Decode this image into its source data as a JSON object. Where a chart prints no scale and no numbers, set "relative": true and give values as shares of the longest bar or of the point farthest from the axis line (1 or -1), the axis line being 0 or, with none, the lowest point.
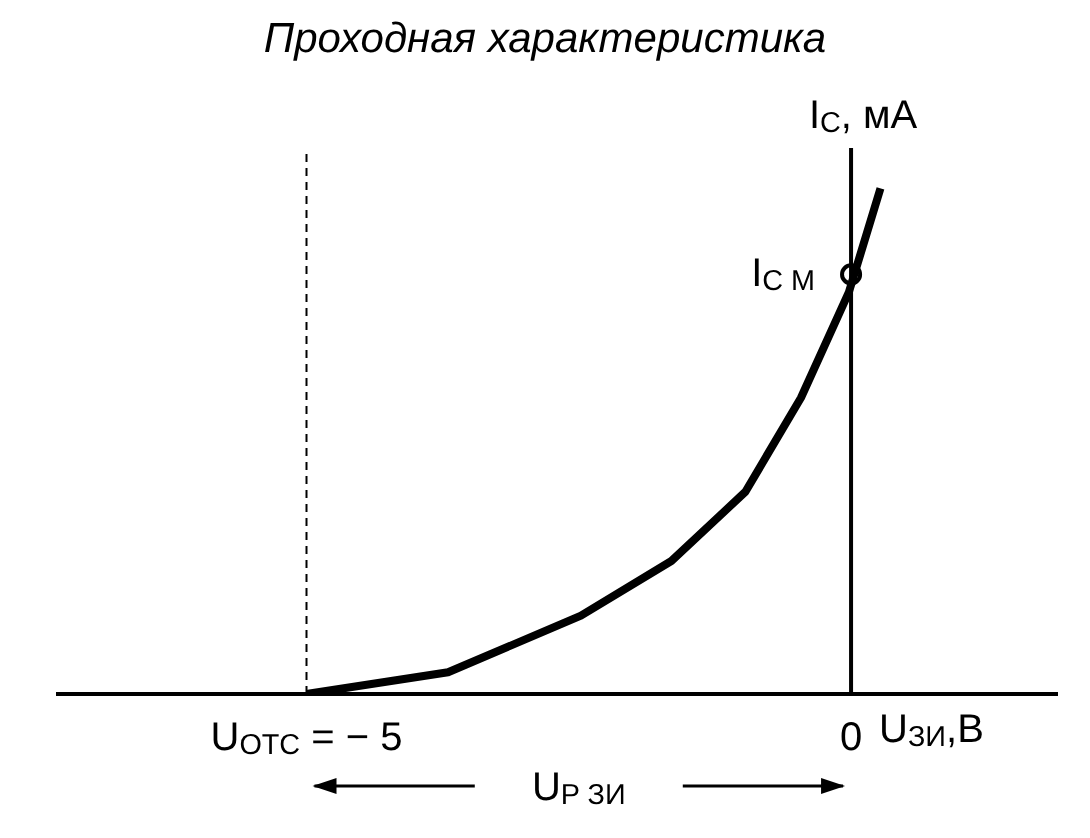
{
  "chart_data": {
    "type": "line",
    "title": "Проходная характеристика",
    "xlabel": "U$_{ЗИ}$,В",
    "ylabel": "I$_{C}$, мА",
    "relative": true,
    "xlim": [
      -7.3,
      1.9
    ],
    "xticks": [
      {
        "value": -5,
        "label": "U$_{ОТС}$ = − 5"
      },
      0
    ],
    "series": [
      {
        "color": "#000000",
        "x": [
          -5,
          -3.7,
          -2.48,
          -1.65,
          -0.97,
          -0.46,
          -0.02,
          0.27
        ],
        "values": [
          0,
          0.043,
          0.155,
          0.263,
          0.4,
          0.586,
          0.795,
          1
        ]
      },
      {
        "type": "scatter",
        "color": "#000000",
        "marker": "circle",
        "x": [
          0
        ],
        "values": [
          0.83
        ]
      }
    ],
    "ref_lines": [
      {
        "axis": "x",
        "value": -5,
        "line_style": "dashed",
        "color": "#000000"
      }
    ],
    "annotations": [
      {
        "text": "I$_{C М}$",
        "x": 0,
        "y": 0.83
      },
      "U$_{P ЗИ}$"
    ]
  }
}
